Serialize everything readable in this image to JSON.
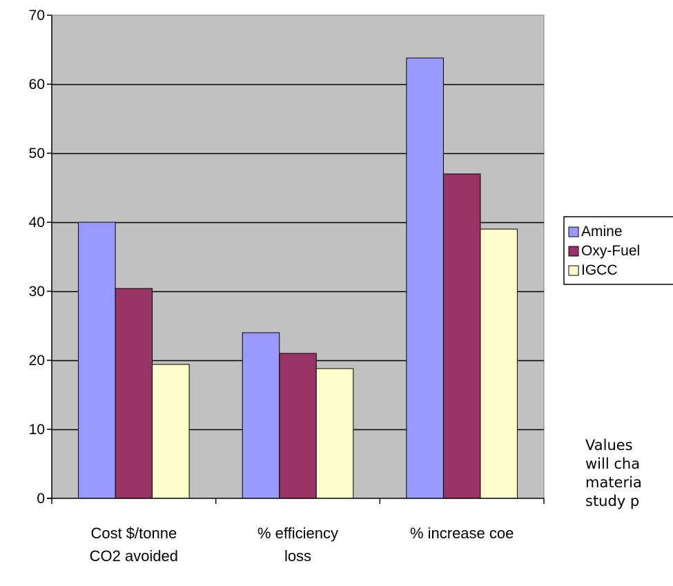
{
  "chart_data": {
    "type": "bar",
    "categories": [
      [
        "Cost $/tonne",
        "CO2 avoided"
      ],
      [
        "% efficiency",
        "loss"
      ],
      [
        "% increase coe"
      ]
    ],
    "series": [
      {
        "name": "Amine",
        "color": "#9999ff",
        "values": [
          40,
          24,
          63.8
        ]
      },
      {
        "name": "Oxy-Fuel",
        "color": "#993366",
        "values": [
          30.4,
          21,
          47
        ]
      },
      {
        "name": "IGCC",
        "color": "#ffffcc",
        "values": [
          19.4,
          18.8,
          39
        ]
      }
    ],
    "ylim": [
      0,
      70
    ],
    "yticks": [
      0,
      10,
      20,
      30,
      40,
      50,
      60,
      70
    ],
    "plot_background": "#c0c0c0",
    "grid": true,
    "legend_position": "right"
  },
  "annotation": {
    "lines": [
      "Values",
      "will cha",
      "materia",
      "study p"
    ]
  }
}
